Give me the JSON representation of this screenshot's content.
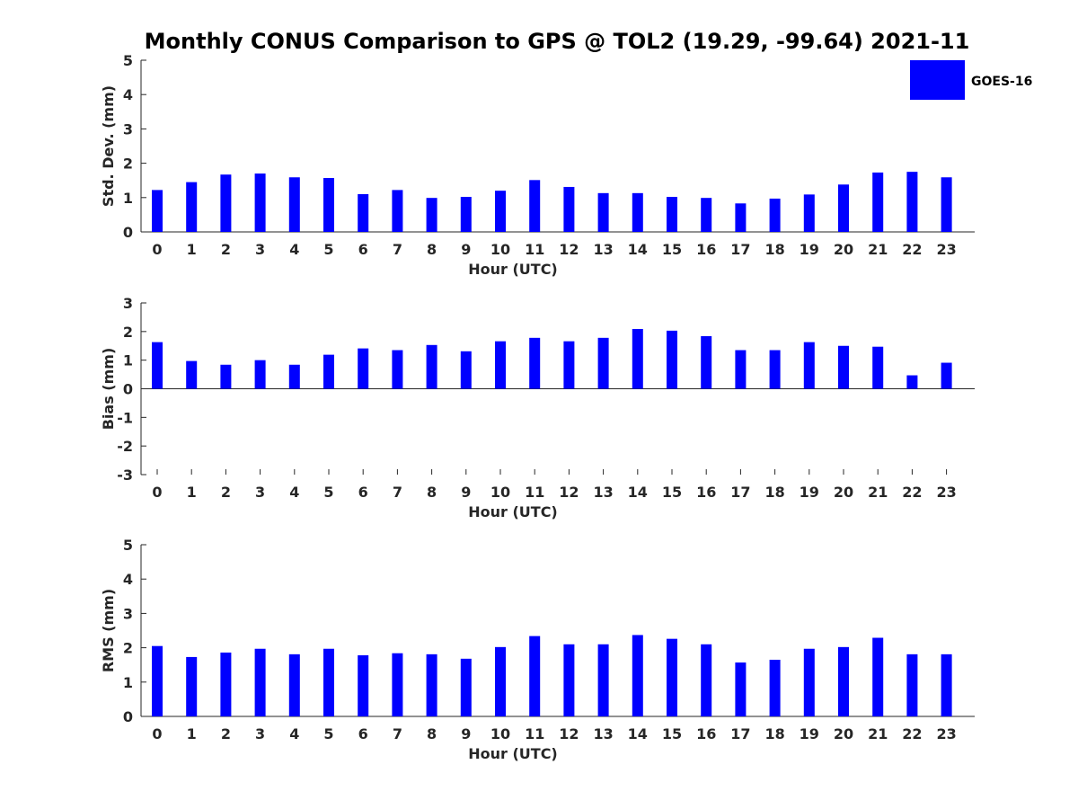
{
  "figure": {
    "title": "Monthly CONUS Comparison to GPS @ TOL2 (19.29, -99.64) 2021-11"
  },
  "legend": {
    "label": "GOES-16",
    "color": "#0000ff",
    "placement": "top-right"
  },
  "chart_data": [
    {
      "type": "bar",
      "name": "std-dev",
      "xlabel": "Hour (UTC)",
      "ylabel": "Std. Dev. (mm)",
      "ylim": [
        0,
        5
      ],
      "yticks": [
        0,
        1,
        2,
        3,
        4,
        5
      ],
      "categories": [
        "0",
        "1",
        "2",
        "3",
        "4",
        "5",
        "6",
        "7",
        "8",
        "9",
        "10",
        "11",
        "12",
        "13",
        "14",
        "15",
        "16",
        "17",
        "18",
        "19",
        "20",
        "21",
        "22",
        "23"
      ],
      "series": [
        {
          "name": "GOES-16",
          "color": "#0000ff",
          "values": [
            1.22,
            1.45,
            1.67,
            1.7,
            1.59,
            1.57,
            1.1,
            1.22,
            0.99,
            1.02,
            1.2,
            1.51,
            1.31,
            1.13,
            1.13,
            1.02,
            0.99,
            0.83,
            0.97,
            1.09,
            1.38,
            1.73,
            1.75,
            1.59
          ]
        }
      ],
      "grid": false
    },
    {
      "type": "bar",
      "name": "bias",
      "xlabel": "Hour (UTC)",
      "ylabel": "Bias (mm)",
      "ylim": [
        -3,
        3
      ],
      "yticks": [
        -3,
        -2,
        -1,
        0,
        1,
        2,
        3
      ],
      "categories": [
        "0",
        "1",
        "2",
        "3",
        "4",
        "5",
        "6",
        "7",
        "8",
        "9",
        "10",
        "11",
        "12",
        "13",
        "14",
        "15",
        "16",
        "17",
        "18",
        "19",
        "20",
        "21",
        "22",
        "23"
      ],
      "series": [
        {
          "name": "GOES-16",
          "color": "#0000ff",
          "values": [
            1.63,
            0.97,
            0.84,
            1.0,
            0.84,
            1.19,
            1.41,
            1.35,
            1.53,
            1.31,
            1.66,
            1.78,
            1.66,
            1.78,
            2.09,
            2.03,
            1.84,
            1.35,
            1.35,
            1.63,
            1.5,
            1.47,
            0.47,
            0.91
          ]
        }
      ],
      "grid": false
    },
    {
      "type": "bar",
      "name": "rms",
      "xlabel": "Hour (UTC)",
      "ylabel": "RMS (mm)",
      "ylim": [
        0,
        5
      ],
      "yticks": [
        0,
        1,
        2,
        3,
        4,
        5
      ],
      "categories": [
        "0",
        "1",
        "2",
        "3",
        "4",
        "5",
        "6",
        "7",
        "8",
        "9",
        "10",
        "11",
        "12",
        "13",
        "14",
        "15",
        "16",
        "17",
        "18",
        "19",
        "20",
        "21",
        "22",
        "23"
      ],
      "series": [
        {
          "name": "GOES-16",
          "color": "#0000ff",
          "values": [
            2.05,
            1.73,
            1.86,
            1.97,
            1.81,
            1.97,
            1.78,
            1.84,
            1.81,
            1.68,
            2.02,
            2.34,
            2.1,
            2.1,
            2.37,
            2.26,
            2.1,
            1.57,
            1.65,
            1.97,
            2.02,
            2.29,
            1.81,
            1.81
          ]
        }
      ],
      "grid": false
    }
  ]
}
